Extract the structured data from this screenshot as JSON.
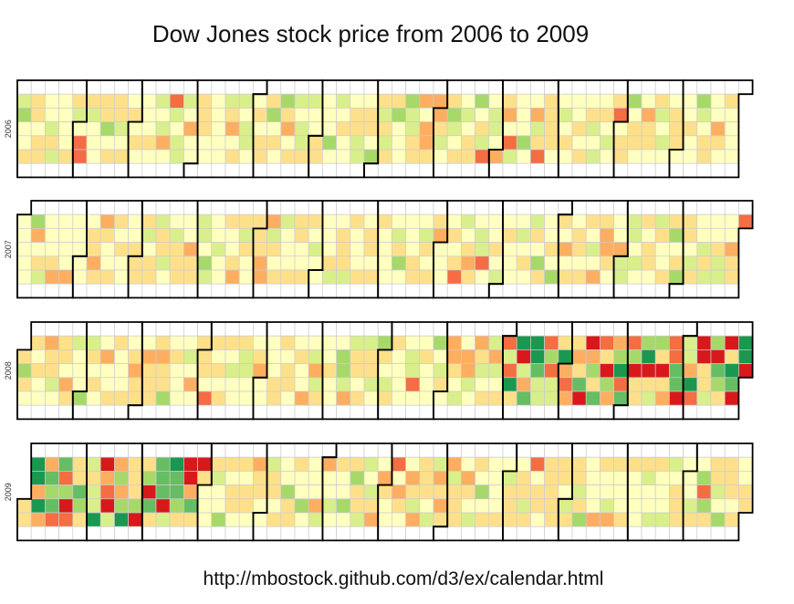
{
  "title": "Dow Jones stock price from 2006 to 2009",
  "url": "http://mbostock.github.com/d3/ex/calendar.html",
  "chart_data": {
    "type": "heatmap",
    "layout": "calendar",
    "years": [
      "2006",
      "2007",
      "2008",
      "2009"
    ],
    "palette": [
      "#d7191c",
      "#f46d43",
      "#fdae61",
      "#fee08b",
      "#ffffbf",
      "#d9ef8b",
      "#a6d96a",
      "#66bd63",
      "#1a9850"
    ],
    "empty_color": "#ffffff",
    "grid": true
  }
}
